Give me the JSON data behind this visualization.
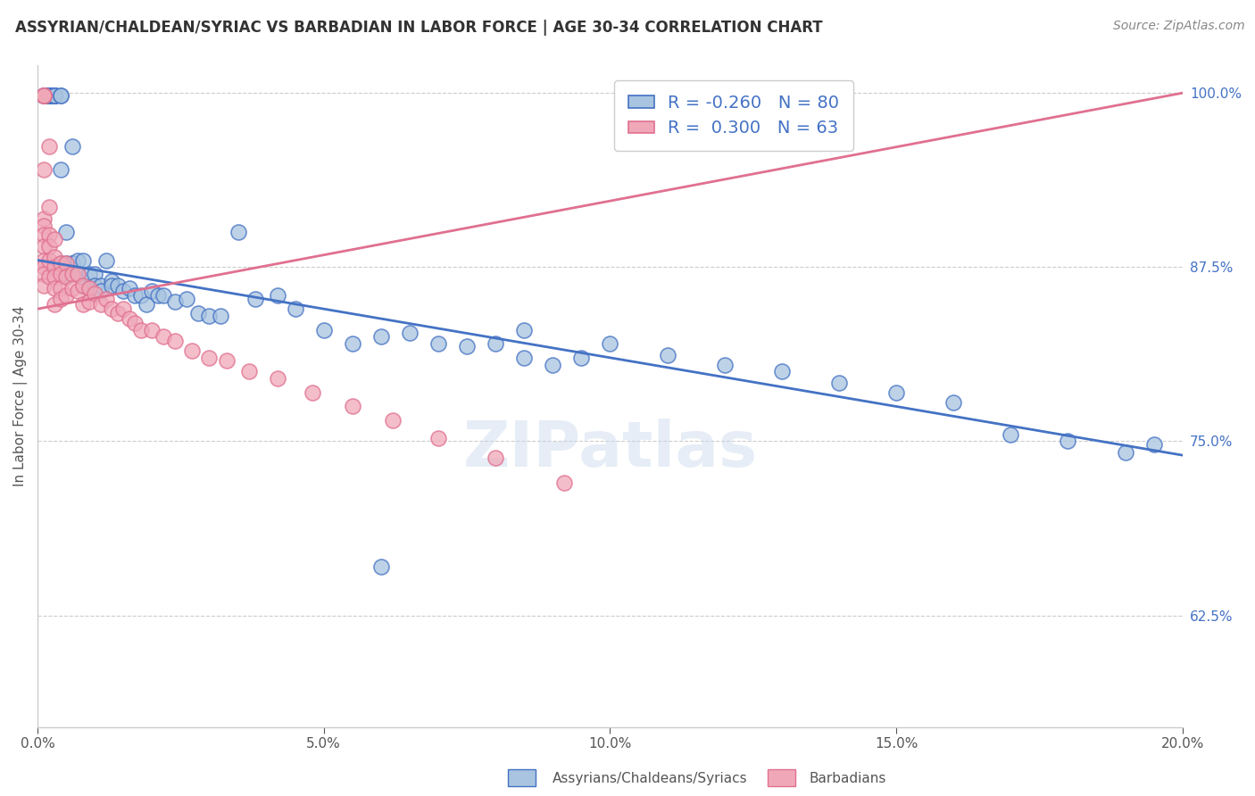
{
  "title": "ASSYRIAN/CHALDEAN/SYRIAC VS BARBADIAN IN LABOR FORCE | AGE 30-34 CORRELATION CHART",
  "source_text": "Source: ZipAtlas.com",
  "ylabel": "In Labor Force | Age 30-34",
  "legend_label1": "Assyrians/Chaldeans/Syriacs",
  "legend_label2": "Barbadians",
  "r1": -0.26,
  "n1": 80,
  "r2": 0.3,
  "n2": 63,
  "xlim": [
    0.0,
    0.2
  ],
  "ylim": [
    0.545,
    1.02
  ],
  "yticks": [
    0.625,
    0.75,
    0.875,
    1.0
  ],
  "ytick_labels": [
    "62.5%",
    "75.0%",
    "87.5%",
    "100.0%"
  ],
  "xticks": [
    0.0,
    0.05,
    0.1,
    0.15,
    0.2
  ],
  "xtick_labels": [
    "0.0%",
    "5.0%",
    "10.0%",
    "15.0%",
    "20.0%"
  ],
  "color_blue": "#a8c4e0",
  "color_pink": "#f0a8b8",
  "line_color_blue": "#4472c4",
  "line_color_pink": "#e07090",
  "background_color": "#ffffff",
  "blue_trend_x": [
    0.0,
    0.2
  ],
  "blue_trend_y": [
    0.88,
    0.74
  ],
  "pink_trend_x": [
    0.0,
    0.2
  ],
  "pink_trend_y": [
    0.845,
    1.0
  ],
  "blue_x": [
    0.001,
    0.001,
    0.001,
    0.001,
    0.002,
    0.002,
    0.002,
    0.002,
    0.002,
    0.003,
    0.003,
    0.003,
    0.003,
    0.003,
    0.003,
    0.004,
    0.004,
    0.004,
    0.004,
    0.005,
    0.005,
    0.005,
    0.006,
    0.006,
    0.006,
    0.007,
    0.007,
    0.007,
    0.008,
    0.008,
    0.009,
    0.009,
    0.01,
    0.01,
    0.011,
    0.011,
    0.012,
    0.013,
    0.013,
    0.014,
    0.015,
    0.016,
    0.017,
    0.018,
    0.019,
    0.02,
    0.021,
    0.022,
    0.024,
    0.026,
    0.028,
    0.03,
    0.032,
    0.035,
    0.038,
    0.042,
    0.045,
    0.05,
    0.055,
    0.06,
    0.065,
    0.07,
    0.075,
    0.08,
    0.085,
    0.09,
    0.095,
    0.1,
    0.11,
    0.12,
    0.13,
    0.14,
    0.15,
    0.16,
    0.17,
    0.18,
    0.19,
    0.195,
    0.085,
    0.06
  ],
  "blue_y": [
    0.998,
    0.998,
    0.998,
    0.998,
    0.998,
    0.998,
    0.998,
    0.998,
    0.998,
    0.998,
    0.998,
    0.998,
    0.998,
    0.998,
    0.998,
    0.998,
    0.998,
    0.945,
    0.878,
    0.9,
    0.878,
    0.868,
    0.962,
    0.878,
    0.878,
    0.88,
    0.87,
    0.87,
    0.88,
    0.862,
    0.87,
    0.86,
    0.87,
    0.862,
    0.862,
    0.858,
    0.88,
    0.865,
    0.862,
    0.862,
    0.858,
    0.86,
    0.855,
    0.855,
    0.848,
    0.858,
    0.855,
    0.855,
    0.85,
    0.852,
    0.842,
    0.84,
    0.84,
    0.9,
    0.852,
    0.855,
    0.845,
    0.83,
    0.82,
    0.825,
    0.828,
    0.82,
    0.818,
    0.82,
    0.81,
    0.805,
    0.81,
    0.82,
    0.812,
    0.805,
    0.8,
    0.792,
    0.785,
    0.778,
    0.755,
    0.75,
    0.742,
    0.748,
    0.83,
    0.66
  ],
  "pink_x": [
    0.001,
    0.001,
    0.001,
    0.001,
    0.001,
    0.001,
    0.001,
    0.001,
    0.001,
    0.001,
    0.001,
    0.001,
    0.001,
    0.002,
    0.002,
    0.002,
    0.002,
    0.002,
    0.002,
    0.003,
    0.003,
    0.003,
    0.003,
    0.003,
    0.003,
    0.004,
    0.004,
    0.004,
    0.004,
    0.005,
    0.005,
    0.005,
    0.006,
    0.006,
    0.007,
    0.007,
    0.008,
    0.008,
    0.009,
    0.009,
    0.01,
    0.011,
    0.012,
    0.013,
    0.014,
    0.015,
    0.016,
    0.017,
    0.018,
    0.02,
    0.022,
    0.024,
    0.027,
    0.03,
    0.033,
    0.037,
    0.042,
    0.048,
    0.055,
    0.062,
    0.07,
    0.08,
    0.092
  ],
  "pink_y": [
    0.998,
    0.998,
    0.998,
    0.998,
    0.945,
    0.91,
    0.905,
    0.898,
    0.89,
    0.88,
    0.875,
    0.87,
    0.862,
    0.962,
    0.918,
    0.898,
    0.89,
    0.88,
    0.868,
    0.895,
    0.882,
    0.875,
    0.868,
    0.86,
    0.848,
    0.878,
    0.87,
    0.86,
    0.852,
    0.878,
    0.868,
    0.855,
    0.87,
    0.86,
    0.87,
    0.858,
    0.862,
    0.848,
    0.86,
    0.85,
    0.856,
    0.848,
    0.852,
    0.845,
    0.842,
    0.845,
    0.838,
    0.835,
    0.83,
    0.83,
    0.825,
    0.822,
    0.815,
    0.81,
    0.808,
    0.8,
    0.795,
    0.785,
    0.775,
    0.765,
    0.752,
    0.738,
    0.72
  ]
}
